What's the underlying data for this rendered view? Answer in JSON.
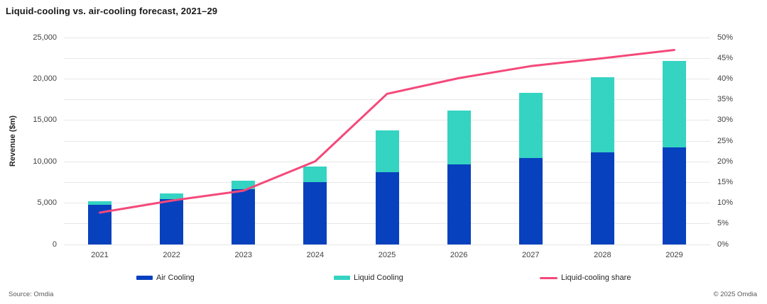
{
  "header": {
    "title": "Liquid-cooling vs. air-cooling forecast, 2021–29"
  },
  "footer": {
    "source": "Source: Omdia",
    "copyright": "© 2025 Omdia"
  },
  "colors": {
    "air_cooling": "#0841BE",
    "liquid_cooling": "#35D3C2",
    "share_line": "#F4497A",
    "gridline": "#e7e7e7",
    "title_text": "#1a1a1a",
    "axis_text": "#404040"
  },
  "chart_data": {
    "type": "bar",
    "subtype": "stacked-bars-with-line-overlay",
    "title": "Liquid-cooling vs. air-cooling forecast, 2021–29",
    "categories": [
      "2021",
      "2022",
      "2023",
      "2024",
      "2025",
      "2026",
      "2027",
      "2028",
      "2029"
    ],
    "series": [
      {
        "name": "Air Cooling",
        "color": "#0841BE",
        "axis": "left",
        "values": [
          4800,
          5500,
          6700,
          7550,
          8750,
          9650,
          10450,
          11150,
          11750
        ]
      },
      {
        "name": "Liquid Cooling",
        "color": "#35D3C2",
        "axis": "left",
        "stacked_on": "Air Cooling",
        "values": [
          400,
          650,
          1000,
          1900,
          5000,
          6500,
          7900,
          9100,
          10400
        ]
      }
    ],
    "line_series": {
      "name": "Liquid-cooling share",
      "color": "#F4497A",
      "axis": "right",
      "values": [
        7.7,
        10.6,
        13.0,
        20.1,
        36.4,
        40.2,
        43.1,
        45.0,
        47.0
      ]
    },
    "xlabel": "",
    "ylabel": "Revenue ($m)",
    "ylim": [
      0,
      25000
    ],
    "y2lim": [
      0,
      50
    ],
    "y_ticks": [
      "0",
      "5,000",
      "10,000",
      "15,000",
      "20,000",
      "25,000"
    ],
    "y_tick_step": 5000,
    "y2_ticks": [
      "0%",
      "5%",
      "10%",
      "15%",
      "20%",
      "25%",
      "30%",
      "35%",
      "40%",
      "45%",
      "50%"
    ],
    "y2_tick_step": 5,
    "gridline_step": 2500,
    "grid": true,
    "legend_position": "bottom"
  }
}
